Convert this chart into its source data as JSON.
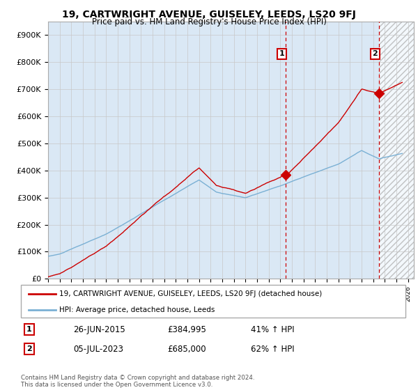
{
  "title": "19, CARTWRIGHT AVENUE, GUISELEY, LEEDS, LS20 9FJ",
  "subtitle": "Price paid vs. HM Land Registry's House Price Index (HPI)",
  "ylabel_ticks": [
    "£0",
    "£100K",
    "£200K",
    "£300K",
    "£400K",
    "£500K",
    "£600K",
    "£700K",
    "£800K",
    "£900K"
  ],
  "ytick_values": [
    0,
    100000,
    200000,
    300000,
    400000,
    500000,
    600000,
    700000,
    800000,
    900000
  ],
  "ylim": [
    0,
    950000
  ],
  "xlim_start": 1995.0,
  "xlim_end": 2026.5,
  "grid_color": "#c8c8c8",
  "background_color": "#ffffff",
  "plot_bg_color": "#dae8f5",
  "sale1_date": 2015.48,
  "sale1_price": 384995,
  "sale1_label": "1",
  "sale1_pct": "41% ↑ HPI",
  "sale1_date_str": "26-JUN-2015",
  "sale2_date": 2023.51,
  "sale2_price": 685000,
  "sale2_label": "2",
  "sale2_pct": "62% ↑ HPI",
  "sale2_date_str": "05-JUL-2023",
  "legend_line1": "19, CARTWRIGHT AVENUE, GUISELEY, LEEDS, LS20 9FJ (detached house)",
  "legend_line2": "HPI: Average price, detached house, Leeds",
  "footer": "Contains HM Land Registry data © Crown copyright and database right 2024.\nThis data is licensed under the Open Government Licence v3.0.",
  "red_color": "#cc0000",
  "blue_color": "#7ab0d4",
  "marker_color": "#cc0000",
  "dashed_vline_color": "#cc0000",
  "table_row1": [
    "1",
    "26-JUN-2015",
    "£384,995",
    "41% ↑ HPI"
  ],
  "table_row2": [
    "2",
    "05-JUL-2023",
    "£685,000",
    "62% ↑ HPI"
  ]
}
